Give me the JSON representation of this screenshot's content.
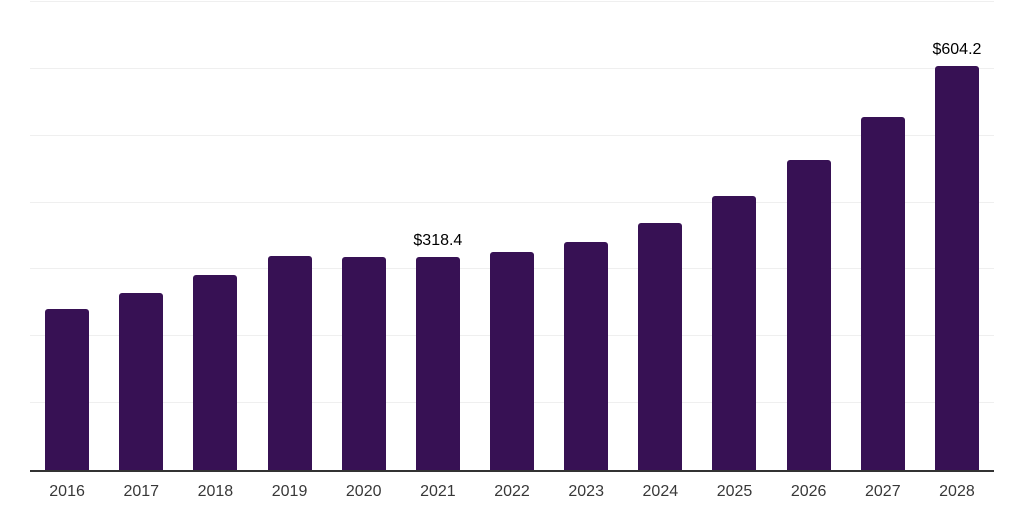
{
  "chart_data": {
    "type": "bar",
    "title": "",
    "xlabel": "",
    "ylabel": "",
    "categories": [
      "2016",
      "2017",
      "2018",
      "2019",
      "2020",
      "2021",
      "2022",
      "2023",
      "2024",
      "2025",
      "2026",
      "2027",
      "2028"
    ],
    "values": [
      241.0,
      264.5,
      291.5,
      320.4,
      319.2,
      318.4,
      326.5,
      341.8,
      369.5,
      409.8,
      463.6,
      528.0,
      604.2
    ],
    "value_labels": [
      "",
      "",
      "",
      "",
      "",
      "$318.4",
      "",
      "",
      "",
      "",
      "",
      "",
      "$604.2"
    ],
    "ylim": [
      0,
      700
    ],
    "grid_step": 100,
    "grid": "horizontal",
    "legend_position": "none",
    "colors": {
      "bar": "#371154",
      "gridline": "#efefef",
      "axis_line": "#333333",
      "tick_label": "#383838",
      "value_label": "#000000",
      "background": "#ffffff"
    }
  }
}
